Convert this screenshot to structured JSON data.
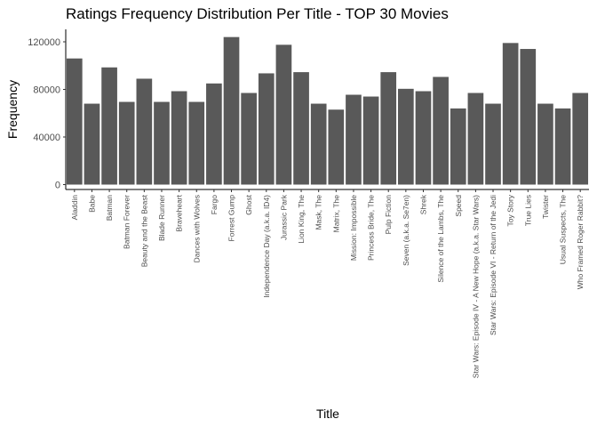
{
  "chart_data": {
    "type": "bar",
    "title": "Ratings Frequency Distribution Per Title - TOP 30 Movies",
    "xlabel": "Title",
    "ylabel": "Frequency",
    "ylim": [
      0,
      126000
    ],
    "yticks": [
      0,
      40000,
      80000,
      120000
    ],
    "ytick_labels": [
      "0",
      "40000",
      "80000",
      "120000"
    ],
    "grid": false,
    "bar_color": "#595959",
    "categories": [
      "Aladdin",
      "Babe",
      "Batman",
      "Batman Forever",
      "Beauty and the Beast",
      "Blade Runner",
      "Braveheart",
      "Dances with Wolves",
      "Fargo",
      "Forrest Gump",
      "Ghost",
      "Independence Day (a.k.a. ID4)",
      "Jurassic Park",
      "Lion King, The",
      "Mask, The",
      "Matrix, The",
      "Mission: Impossible",
      "Princess Bride, The",
      "Pulp Fiction",
      "Seven (a.k.a. Se7en)",
      "Shrek",
      "Silence of the Lambs, The",
      "Speed",
      "Star Wars: Episode IV - A New Hope (a.k.a. Star Wars)",
      "Star Wars: Episode VI - Return of the Jedi",
      "Toy Story",
      "True Lies",
      "Twister",
      "Usual Suspects, The",
      "Who Framed Roger Rabbit?"
    ],
    "values": [
      106000,
      68000,
      98500,
      69500,
      89000,
      69500,
      78500,
      69500,
      85000,
      124000,
      77000,
      93500,
      117500,
      94500,
      68000,
      63000,
      75500,
      74000,
      94500,
      80500,
      78500,
      90500,
      64000,
      77000,
      68000,
      119000,
      114000,
      68000,
      64000,
      77000
    ]
  }
}
